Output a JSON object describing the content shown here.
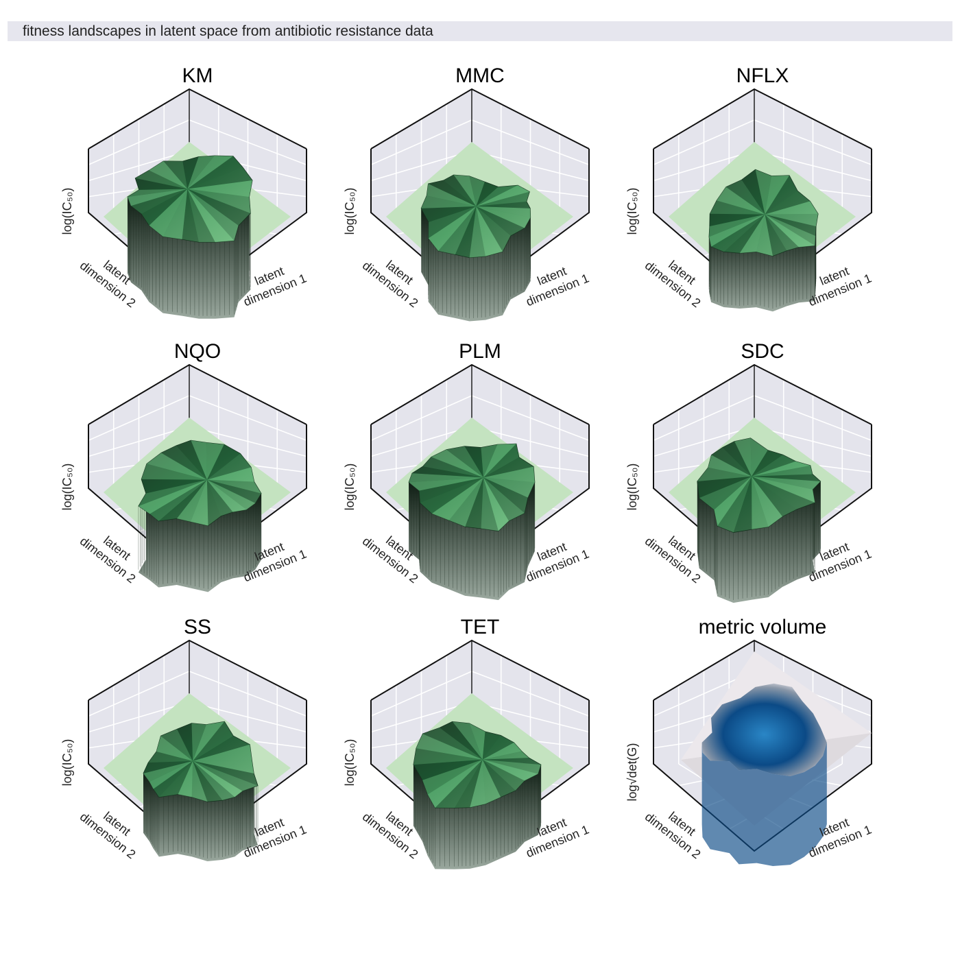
{
  "figure": {
    "title": "fitness landscapes in latent space from antibiotic resistance data"
  },
  "colors": {
    "pane": "#e4e4ec",
    "grid": "#ffffff",
    "floor": "#c4e3c0",
    "surface_dark": "#1c3a26",
    "surface_mid": "#1f7a40",
    "surface_light": "#7bc48a",
    "volume_dark": "#0b4a86",
    "volume_mid": "#2a86c6",
    "volume_plane": "#ece8ec"
  },
  "axes": {
    "x_label": [
      "latent",
      "dimension 1"
    ],
    "y_label": [
      "latent",
      "dimension 2"
    ]
  },
  "chart_data": [
    {
      "type": "surface3d",
      "title": "KM",
      "zlabel": "log(IC₅₀)",
      "kind": "fitness",
      "seed": 3,
      "height": 1.0,
      "floor": 0.35
    },
    {
      "type": "surface3d",
      "title": "MMC",
      "zlabel": "log(IC₅₀)",
      "kind": "fitness",
      "seed": 7,
      "height": 0.62,
      "floor": 0.1
    },
    {
      "type": "surface3d",
      "title": "NFLX",
      "zlabel": "log(IC₅₀)",
      "kind": "fitness",
      "seed": 11,
      "height": 0.38,
      "floor": 0.05
    },
    {
      "type": "surface3d",
      "title": "NQO",
      "zlabel": "log(IC₅₀)",
      "kind": "fitness",
      "seed": 5,
      "height": 0.7,
      "floor": 0.1
    },
    {
      "type": "surface3d",
      "title": "PLM",
      "zlabel": "log(IC₅₀)",
      "kind": "fitness",
      "seed": 9,
      "height": 0.78,
      "floor": 0.1
    },
    {
      "type": "surface3d",
      "title": "SDC",
      "zlabel": "log(IC₅₀)",
      "kind": "fitness",
      "seed": 13,
      "height": 0.82,
      "floor": 0.1
    },
    {
      "type": "surface3d",
      "title": "SS",
      "zlabel": "log(IC₅₀)",
      "kind": "fitness",
      "seed": 17,
      "height": 0.5,
      "floor": 0.1
    },
    {
      "type": "surface3d",
      "title": "TET",
      "zlabel": "log(IC₅₀)",
      "kind": "fitness",
      "seed": 19,
      "height": 0.55,
      "floor": 0.1
    },
    {
      "type": "surface3d",
      "title": "metric volume",
      "zlabel": "log√det(G)",
      "kind": "metric",
      "seed": 23,
      "height": 0.75,
      "floor": 0.0
    }
  ]
}
